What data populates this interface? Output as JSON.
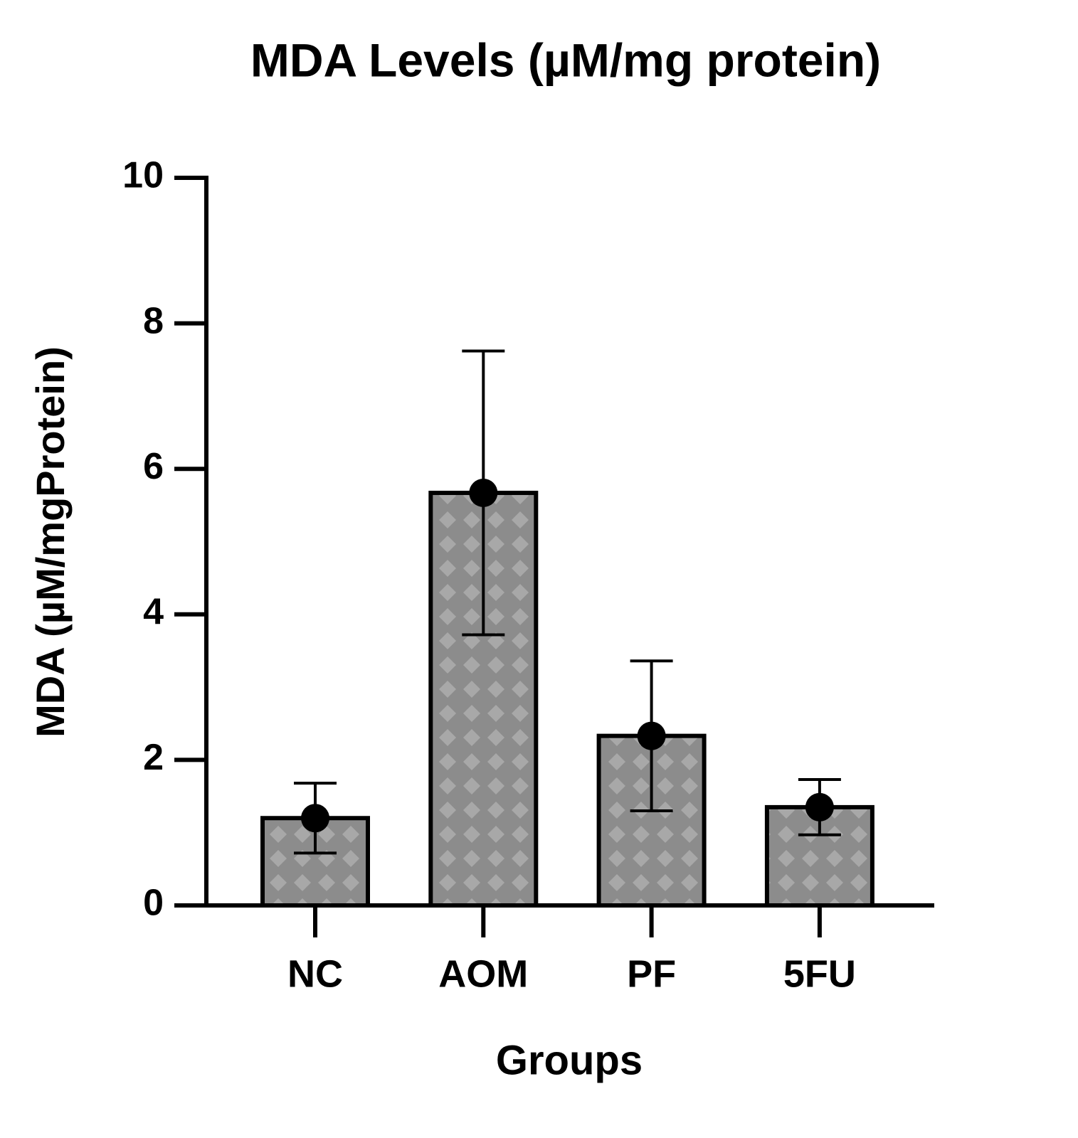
{
  "chart_data": {
    "type": "bar",
    "title": "MDA Levels (µM/mg protein)",
    "x_label": "Groups",
    "y_label": "MDA (µM/mgProtein)",
    "categories": [
      "NC",
      "AOM",
      "PF",
      "5FU"
    ],
    "values": [
      1.2,
      5.67,
      2.33,
      1.35
    ],
    "errors": [
      0.48,
      1.95,
      1.03,
      0.38
    ],
    "color": "#8c8c8c",
    "ylim": [
      0,
      10
    ],
    "yticks": [
      0,
      2,
      4,
      6,
      8,
      10
    ],
    "grid": false
  }
}
